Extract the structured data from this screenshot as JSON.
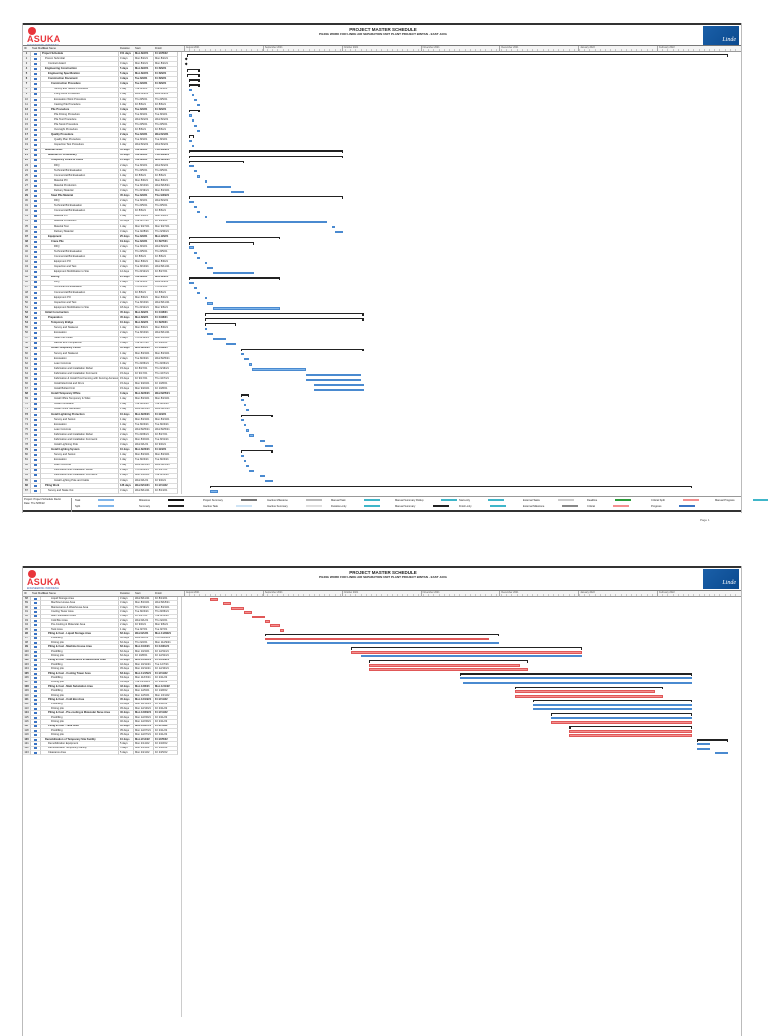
{
  "header": {
    "company_logo": "ASUKA",
    "company_logo_sub": "ENGINEERING INDONESIA",
    "title": "PROJECT MASTER SCHEDULE",
    "subtitle": "PILING WORK FOR LINDE AIR SEPARATION UNIT PLANT PROJECT BINTAN - EAST JAVA",
    "client_logo": "Linde"
  },
  "columns": {
    "id": "ID",
    "mode": "Task Mode",
    "name": "Task Name",
    "duration": "Duration",
    "start": "Start",
    "finish": "Finish"
  },
  "timeline": {
    "months": [
      "August 2021",
      "September 2021",
      "October 2021",
      "November 2021",
      "December 2021",
      "January 2022",
      "February 2022"
    ]
  },
  "colors": {
    "task": "#7fb5ea",
    "critical": "#f48f8f",
    "summary": "#222222",
    "brand": "#e8353b",
    "client": "#1a5fa8"
  },
  "page1": {
    "page_label": "Page 1",
    "tasks": [
      [
        1,
        "Project Schedule",
        "151 days",
        "Mon 8/2/21",
        "Fri 2/25/22",
        0,
        "s"
      ],
      [
        2,
        "Precon Submittal",
        "0 days",
        "Mon 8/2/21",
        "Mon 8/2/21",
        1,
        "m"
      ],
      [
        3,
        "Contract Award",
        "0 days",
        "Mon 8/2/21",
        "Mon 8/2/21",
        2,
        "m"
      ],
      [
        4,
        "Engineering Construction",
        "5 days",
        "Mon 8/2/21",
        "Fri 8/6/21",
        1,
        "s"
      ],
      [
        5,
        "Engineering Specification",
        "5 days",
        "Mon 8/2/21",
        "Fri 8/6/21",
        2,
        "s"
      ],
      [
        6,
        "Construction Document",
        "4 days",
        "Tue 8/3/21",
        "Fri 8/6/21",
        2,
        "s"
      ],
      [
        7,
        "Construction Procedure",
        "4 days",
        "Tue 8/3/21",
        "Fri 8/6/21",
        3,
        "s"
      ],
      [
        8,
        "Survey and Setout Procedure",
        "1 day",
        "Tue 8/3/21",
        "Tue 8/3/21",
        4,
        "t"
      ],
      [
        9,
        "Piling Work Procedure",
        "1 day",
        "Wed 8/4/21",
        "Wed 8/4/21",
        4,
        "t"
      ],
      [
        10,
        "Excavation Work Procedure",
        "1 day",
        "Thu 8/5/21",
        "Thu 8/5/21",
        4,
        "t"
      ],
      [
        11,
        "Casting Pile Procedure",
        "1 day",
        "Fri 8/6/21",
        "Fri 8/6/21",
        4,
        "t"
      ],
      [
        12,
        "Pile Procedure",
        "4 days",
        "Tue 8/3/21",
        "Fri 8/6/21",
        3,
        "s"
      ],
      [
        13,
        "Pile Driving Procedure",
        "1 day",
        "Tue 8/3/21",
        "Tue 8/3/21",
        4,
        "t"
      ],
      [
        14,
        "Pile Test Procedure",
        "1 day",
        "Wed 8/4/21",
        "Wed 8/4/21",
        4,
        "t"
      ],
      [
        15,
        "Pile Stock Procedure",
        "1 day",
        "Thu 8/5/21",
        "Thu 8/5/21",
        4,
        "t"
      ],
      [
        16,
        "Oversight Procedure",
        "1 day",
        "Fri 8/6/21",
        "Fri 8/6/21",
        4,
        "t"
      ],
      [
        17,
        "Quality Procedure",
        "2 days",
        "Tue 8/3/21",
        "Wed 8/4/21",
        3,
        "s"
      ],
      [
        18,
        "Quality Plan Procedure",
        "1 day",
        "Tue 8/3/21",
        "Tue 8/3/21",
        4,
        "t"
      ],
      [
        19,
        "Inspection Test Procedure",
        "1 day",
        "Wed 8/4/21",
        "Wed 8/4/21",
        4,
        "t"
      ],
      [
        20,
        "Material Order",
        "45 days",
        "Tue 8/3/21",
        "Thu 9/30/21",
        1,
        "s"
      ],
      [
        21,
        "Material for Preliminary",
        "45 days",
        "Tue 8/3/21",
        "Thu 9/30/21",
        2,
        "s"
      ],
      [
        22,
        "Temporary Fence & Office",
        "15 days",
        "Tue 8/3/21",
        "Mon 8/23/21",
        3,
        "s"
      ],
      [
        23,
        "RFQ",
        "2 days",
        "Tue 8/3/21",
        "Wed 8/4/21",
        4,
        "t"
      ],
      [
        24,
        "Technical Bid Evaluation",
        "1 day",
        "Thu 8/5/21",
        "Thu 8/5/21",
        4,
        "t"
      ],
      [
        25,
        "Commercial Bid Evaluation",
        "1 day",
        "Fri 8/6/21",
        "Fri 8/6/21",
        4,
        "t"
      ],
      [
        26,
        "Material PO",
        "1 day",
        "Mon 8/9/21",
        "Mon 8/9/21",
        4,
        "t"
      ],
      [
        27,
        "Material Production",
        "7 days",
        "Tue 8/10/21",
        "Wed 8/18/21",
        4,
        "t"
      ],
      [
        28,
        "Delivery Material",
        "3 days",
        "Thu 8/19/21",
        "Mon 8/23/21",
        4,
        "t"
      ],
      [
        29,
        "Steel Pile Material",
        "45 days",
        "Tue 8/3/21",
        "Thu 9/30/21",
        3,
        "s"
      ],
      [
        30,
        "RFQ",
        "2 days",
        "Tue 8/3/21",
        "Wed 8/4/21",
        4,
        "t"
      ],
      [
        31,
        "Technical Bid Evaluation",
        "1 day",
        "Thu 8/5/21",
        "Thu 8/5/21",
        4,
        "t"
      ],
      [
        32,
        "Commercial Bid Evaluation",
        "1 day",
        "Fri 8/6/21",
        "Fri 8/6/21",
        4,
        "t"
      ],
      [
        33,
        "Material PO",
        "1 day",
        "Mon 8/9/21",
        "Mon 8/9/21",
        4,
        "t"
      ],
      [
        34,
        "Material Production",
        "30 days",
        "Tue 8/17/21",
        "Fri 9/24/21",
        4,
        "t"
      ],
      [
        35,
        "Material Test",
        "1 day",
        "Mon 9/27/21",
        "Mon 9/27/21",
        4,
        "t"
      ],
      [
        36,
        "Delivery Material",
        "3 days",
        "Tue 9/28/21",
        "Thu 9/30/21",
        4,
        "t"
      ],
      [
        37,
        "Equipment",
        "25 days",
        "Tue 8/3/21",
        "Mon 9/6/21",
        2,
        "s"
      ],
      [
        38,
        "Crane Pile",
        "19 days",
        "Tue 8/3/21",
        "Fri 8/27/21",
        3,
        "s"
      ],
      [
        39,
        "RFQ",
        "2 days",
        "Tue 8/3/21",
        "Wed 8/4/21",
        4,
        "t"
      ],
      [
        40,
        "Technical Bid Evaluation",
        "1 day",
        "Thu 8/5/21",
        "Thu 8/5/21",
        4,
        "t"
      ],
      [
        41,
        "Commercial Bid Evaluation",
        "1 day",
        "Fri 8/6/21",
        "Fri 8/6/21",
        4,
        "t"
      ],
      [
        42,
        "Equipment PO",
        "1 day",
        "Mon 8/9/21",
        "Mon 8/9/21",
        4,
        "t"
      ],
      [
        43,
        "Inspection and Test",
        "2 days",
        "Tue 8/10/21",
        "Wed 8/11/21",
        4,
        "t"
      ],
      [
        44,
        "Equipment Mobilization to Site",
        "12 days",
        "Thu 8/12/21",
        "Fri 8/27/21",
        4,
        "t"
      ],
      [
        45,
        "Boring",
        "25 days",
        "Tue 8/3/21",
        "Mon 9/6/21",
        3,
        "s"
      ],
      [
        46,
        "RFQ",
        "2 days",
        "Tue 8/3/21",
        "Wed 8/4/21",
        4,
        "t"
      ],
      [
        47,
        "Technical Bid Evaluation",
        "1 day",
        "Thu 8/5/21",
        "Thu 8/5/21",
        4,
        "t"
      ],
      [
        48,
        "Commercial Bid Evaluation",
        "1 day",
        "Fri 8/6/21",
        "Fri 8/6/21",
        4,
        "t"
      ],
      [
        49,
        "Equipment PO",
        "1 day",
        "Mon 8/9/21",
        "Mon 8/9/21",
        4,
        "t"
      ],
      [
        50,
        "Inspection and Test",
        "2 days",
        "Tue 8/10/21",
        "Wed 8/11/21",
        4,
        "t"
      ],
      [
        51,
        "Equipment Mobilization to Site",
        "18 days",
        "Thu 8/12/21",
        "Mon 9/6/21",
        4,
        "t"
      ],
      [
        52,
        "Initial Construction",
        "45 days",
        "Mon 8/9/21",
        "Fri 10/8/21",
        1,
        "s"
      ],
      [
        53,
        "Preparation",
        "45 days",
        "Mon 8/9/21",
        "Fri 10/8/21",
        2,
        "s"
      ],
      [
        54,
        "Temporary Bridge",
        "10 days",
        "Mon 8/9/21",
        "Fri 8/20/21",
        3,
        "s"
      ],
      [
        55,
        "Survey and Stakeout",
        "1 day",
        "Mon 8/9/21",
        "Mon 8/9/21",
        4,
        "t"
      ],
      [
        56,
        "Excavation",
        "2 days",
        "Tue 8/10/21",
        "Wed 8/11/21",
        4,
        "t"
      ],
      [
        57,
        "Steel Pile Install",
        "3 days",
        "Thu 8/12/21",
        "Mon 8/16/21",
        4,
        "t"
      ],
      [
        58,
        "Backfill and Compaction",
        "4 days",
        "Tue 8/17/21",
        "Fri 8/20/21",
        4,
        "t"
      ],
      [
        59,
        "Install Temporary Fence",
        "35 days",
        "Mon 8/23/21",
        "Fri 10/8/21",
        3,
        "s"
      ],
      [
        60,
        "Survey and Stakeout",
        "1 day",
        "Mon 8/23/21",
        "Mon 8/23/21",
        4,
        "t"
      ],
      [
        61,
        "Excavation",
        "2 days",
        "Tue 8/24/21",
        "Wed 8/25/21",
        4,
        "t"
      ],
      [
        62,
        "Lean Concrete",
        "1 day",
        "Thu 8/26/21",
        "Thu 8/26/21",
        4,
        "t"
      ],
      [
        63,
        "Fabrication and Installation Rebar",
        "15 days",
        "Fri 8/27/21",
        "Thu 9/16/21",
        4,
        "t"
      ],
      [
        64,
        "Fabrication and Installation Formwork",
        "15 days",
        "Fri 9/17/21",
        "Thu 10/7/21",
        4,
        "t"
      ],
      [
        65,
        "Fabrication & Install Post Fencing with Fencing Accessories",
        "15 days",
        "Fri 9/17/21",
        "Thu 10/7/21",
        4,
        "t"
      ],
      [
        66,
        "Install Electrical and Drum",
        "15 days",
        "Mon 9/20/21",
        "Fri 10/8/21",
        4,
        "t"
      ],
      [
        67,
        "Install Bollard Unit",
        "15 days",
        "Mon 9/20/21",
        "Fri 10/8/21",
        4,
        "t"
      ],
      [
        68,
        "Install Temporary Office",
        "3 days",
        "Mon 8/23/21",
        "Wed 8/25/21",
        3,
        "s"
      ],
      [
        69,
        "Install Office Temporary & Toilet",
        "1 day",
        "Mon 8/23/21",
        "Mon 8/23/21",
        4,
        "t"
      ],
      [
        70,
        "Install Portacabin",
        "1 day",
        "Tue 8/24/21",
        "Tue 8/24/21",
        4,
        "t"
      ],
      [
        71,
        "Install Office Generator",
        "1 day",
        "Wed 8/25/21",
        "Wed 8/25/21",
        4,
        "t"
      ],
      [
        72,
        "Install Lightning Protection",
        "10 days",
        "Mon 8/23/21",
        "Fri 9/3/21",
        3,
        "s"
      ],
      [
        73,
        "Survey and Setout",
        "1 day",
        "Mon 8/23/21",
        "Mon 8/23/21",
        4,
        "t"
      ],
      [
        74,
        "Excavation",
        "1 day",
        "Tue 8/24/21",
        "Tue 8/24/21",
        4,
        "t"
      ],
      [
        75,
        "Lean Concrete",
        "1 day",
        "Wed 8/25/21",
        "Wed 8/25/21",
        4,
        "t"
      ],
      [
        76,
        "Fabrication and Installation Rebar",
        "2 days",
        "Thu 8/26/21",
        "Fri 8/27/21",
        4,
        "t"
      ],
      [
        77,
        "Fabrication and Installation Formwork",
        "2 days",
        "Mon 8/30/21",
        "Tue 8/31/21",
        4,
        "t"
      ],
      [
        78,
        "Install Lightning Pole",
        "3 days",
        "Wed 9/1/21",
        "Fri 9/3/21",
        4,
        "t"
      ],
      [
        79,
        "Install Lighting System",
        "10 days",
        "Mon 8/23/21",
        "Fri 9/3/21",
        3,
        "s"
      ],
      [
        80,
        "Survey and Setout",
        "1 day",
        "Mon 8/23/21",
        "Mon 8/23/21",
        4,
        "t"
      ],
      [
        81,
        "Excavation",
        "1 day",
        "Tue 8/24/21",
        "Tue 8/24/21",
        4,
        "t"
      ],
      [
        82,
        "Lean Concrete",
        "1 day",
        "Wed 8/25/21",
        "Wed 8/25/21",
        4,
        "t"
      ],
      [
        83,
        "Fabrication and Installation Rebar",
        "2 days",
        "Thu 8/26/21",
        "Fri 8/27/21",
        4,
        "t"
      ],
      [
        84,
        "Fabrication and Installation Formwork",
        "2 days",
        "Mon 8/30/21",
        "Tue 8/31/21",
        4,
        "t"
      ],
      [
        85,
        "Install Lighting Pole and Cable",
        "3 days",
        "Wed 9/1/21",
        "Fri 9/3/21",
        4,
        "t"
      ],
      [
        86,
        "Piling Work",
        "136 days",
        "Wed 8/11/21",
        "Fri 2/11/22",
        1,
        "s"
      ],
      [
        87,
        "Survey and Stake Out",
        "3 days",
        "Wed 8/11/21",
        "Fri 8/13/21",
        2,
        "t"
      ]
    ]
  },
  "page2": {
    "tasks": [
      [
        88,
        "Liquid Storage Area",
        "3 days",
        "Wed 8/11/21",
        "Fri 8/13/21",
        3,
        "c"
      ],
      [
        89,
        "Machine House Area",
        "3 days",
        "Mon 8/16/21",
        "Wed 8/18/21",
        3,
        "c"
      ],
      [
        90,
        "Maintenance & Warehouse Area",
        "3 days",
        "Thu 8/19/21",
        "Mon 8/23/21",
        3,
        "c"
      ],
      [
        91,
        "Cooling Tower Area",
        "3 days",
        "Tue 8/24/21",
        "Thu 8/26/21",
        3,
        "c"
      ],
      [
        92,
        "Main Substation Area",
        "3 days",
        "Fri 8/27/21",
        "Tue 8/31/21",
        3,
        "c"
      ],
      [
        93,
        "Cold Box Area",
        "2 days",
        "Wed 9/1/21",
        "Thu 9/2/21",
        3,
        "c"
      ],
      [
        94,
        "Pre-Cooling & Molecular Area",
        "2 days",
        "Fri 9/3/21",
        "Mon 9/6/21",
        3,
        "c"
      ],
      [
        95,
        "Tank Area",
        "1 day",
        "Tue 9/7/21",
        "Tue 9/7/21",
        3,
        "c"
      ],
      [
        96,
        "Piling & Cast - Liquid Storage Area",
        "62 days",
        "Wed 9/1/21",
        "Mon 11/29/21",
        2,
        "s"
      ],
      [
        97,
        "Predrilling",
        "62 days",
        "Wed 9/1/21",
        "Thu 11/25/21",
        3,
        "c"
      ],
      [
        98,
        "Driving pile",
        "62 days",
        "Thu 9/2/21",
        "Mon 11/29/21",
        3,
        "t"
      ],
      [
        99,
        "Piling & Cast - Machine House Area",
        "62 days",
        "Mon 10/4/21",
        "Fri 12/31/21",
        2,
        "s"
      ],
      [
        100,
        "Predrilling",
        "62 days",
        "Mon 10/4/21",
        "Fri 12/31/21",
        3,
        "c"
      ],
      [
        101,
        "Driving pile",
        "62 days",
        "Fri 10/8/21",
        "Fri 12/31/21",
        3,
        "t"
      ],
      [
        102,
        "Piling & Cast - Maintenance & Warehouse Area",
        "45 days",
        "Mon 10/11/21",
        "Fri 12/10/21",
        2,
        "s"
      ],
      [
        103,
        "Predrilling",
        "42 days",
        "Mon 10/11/21",
        "Tue 12/7/21",
        3,
        "c"
      ],
      [
        104,
        "Driving pile",
        "45 days",
        "Mon 10/11/21",
        "Fri 12/10/21",
        3,
        "c"
      ],
      [
        105,
        "Piling & Cast - Cooling Tower Area",
        "63 days",
        "Mon 11/15/21",
        "Fri 2/11/22",
        2,
        "s"
      ],
      [
        106,
        "Predrilling",
        "63 days",
        "Mon 11/15/21",
        "Fri 2/11/22",
        3,
        "t"
      ],
      [
        107,
        "Driving pile",
        "63 days",
        "Tue 11/16/21",
        "Fri 2/11/22",
        3,
        "t"
      ],
      [
        108,
        "Piling & Cast - Main Substation Area",
        "42 days",
        "Mon 12/6/21",
        "Mon 1/31/22",
        2,
        "s"
      ],
      [
        109,
        "Predrilling",
        "40 days",
        "Mon 12/6/21",
        "Fri 1/28/22",
        3,
        "c"
      ],
      [
        110,
        "Driving pile",
        "42 days",
        "Mon 12/6/21",
        "Mon 1/31/22",
        3,
        "c"
      ],
      [
        111,
        "Piling & Cast - Cold Box Area",
        "45 days",
        "Mon 12/13/21",
        "Fri 2/11/22",
        2,
        "s"
      ],
      [
        112,
        "Predrilling",
        "45 days",
        "Mon 12/13/21",
        "Fri 2/11/22",
        3,
        "t"
      ],
      [
        113,
        "Driving pile",
        "45 days",
        "Mon 12/13/21",
        "Fri 2/11/22",
        3,
        "t"
      ],
      [
        114,
        "Piling & Cast - Pre-cooling & Molecular Sieve Area",
        "40 days",
        "Mon 12/20/21",
        "Fri 2/11/22",
        2,
        "s"
      ],
      [
        115,
        "Predrilling",
        "40 days",
        "Mon 12/20/21",
        "Fri 2/11/22",
        3,
        "t"
      ],
      [
        116,
        "Driving pile",
        "40 days",
        "Mon 12/20/21",
        "Fri 2/11/22",
        3,
        "c"
      ],
      [
        117,
        "Piling & Cast - Tank Area",
        "35 days",
        "Mon 12/27/21",
        "Fri 2/11/22",
        2,
        "s"
      ],
      [
        118,
        "Predrilling",
        "35 days",
        "Mon 12/27/21",
        "Fri 2/11/22",
        3,
        "c"
      ],
      [
        119,
        "Driving pile",
        "35 days",
        "Mon 12/27/21",
        "Fri 2/11/22",
        3,
        "c"
      ],
      [
        120,
        "Demobilization of Temporary Site Facility",
        "10 days",
        "Mon 2/14/22",
        "Fri 2/25/22",
        1,
        "s"
      ],
      [
        121,
        "Demobilization Equipment",
        "5 days",
        "Mon 2/14/22",
        "Fri 2/18/22",
        2,
        "t"
      ],
      [
        122,
        "Demobilization Temporary Facility",
        "5 days",
        "Mon 2/14/22",
        "Fri 2/18/22",
        2,
        "t"
      ],
      [
        123,
        "Clearance Area",
        "5 days",
        "Mon 2/21/22",
        "Fri 2/25/22",
        2,
        "t"
      ]
    ]
  },
  "footer": {
    "project": "Project: Project Schedule Revisi",
    "date": "Date: Thu 5/05/22",
    "legend": [
      "Task",
      "Split",
      "Milestone",
      "Summary",
      "Project Summary",
      "Inactive Task",
      "Inactive Milestone",
      "Inactive Summary",
      "Manual Task",
      "Duration-only",
      "Manual Summary Rollup",
      "Manual Summary",
      "Start-only",
      "Finish-only",
      "External Tasks",
      "External Milestone",
      "Deadline",
      "Critical",
      "Critical Split",
      "Progress",
      "Manual Progress"
    ]
  }
}
